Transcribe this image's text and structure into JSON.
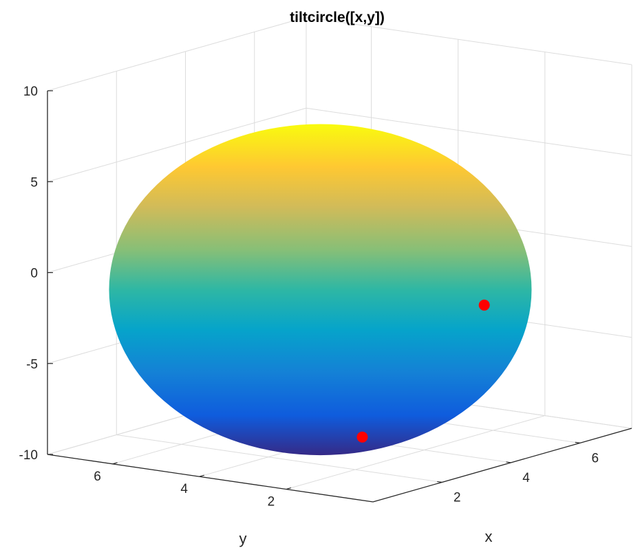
{
  "chart_data": {
    "type": "surface3d",
    "title": "tiltcircle([x,y])",
    "xlabel": "x",
    "ylabel": "y",
    "zlabel": "",
    "xlim": [
      0,
      7.5
    ],
    "ylim": [
      0,
      7.5
    ],
    "zlim": [
      -10,
      10
    ],
    "x_ticks": [
      "2",
      "4",
      "6"
    ],
    "y_ticks": [
      "2",
      "4",
      "6"
    ],
    "z_ticks": [
      "-10",
      "-5",
      "0",
      "5",
      "10"
    ],
    "grid": true,
    "colormap": "parula",
    "surface": {
      "shape": "disk",
      "center": [
        3.75,
        3.75
      ],
      "radius": 3.5,
      "z_range": [
        -8,
        9
      ]
    },
    "points": [
      {
        "x": 1.2,
        "y": 1.2,
        "z": -7.5,
        "color": "#ff0000"
      },
      {
        "x": 7.0,
        "y": 3.0,
        "z": -4,
        "color": "#ff0000"
      }
    ]
  }
}
